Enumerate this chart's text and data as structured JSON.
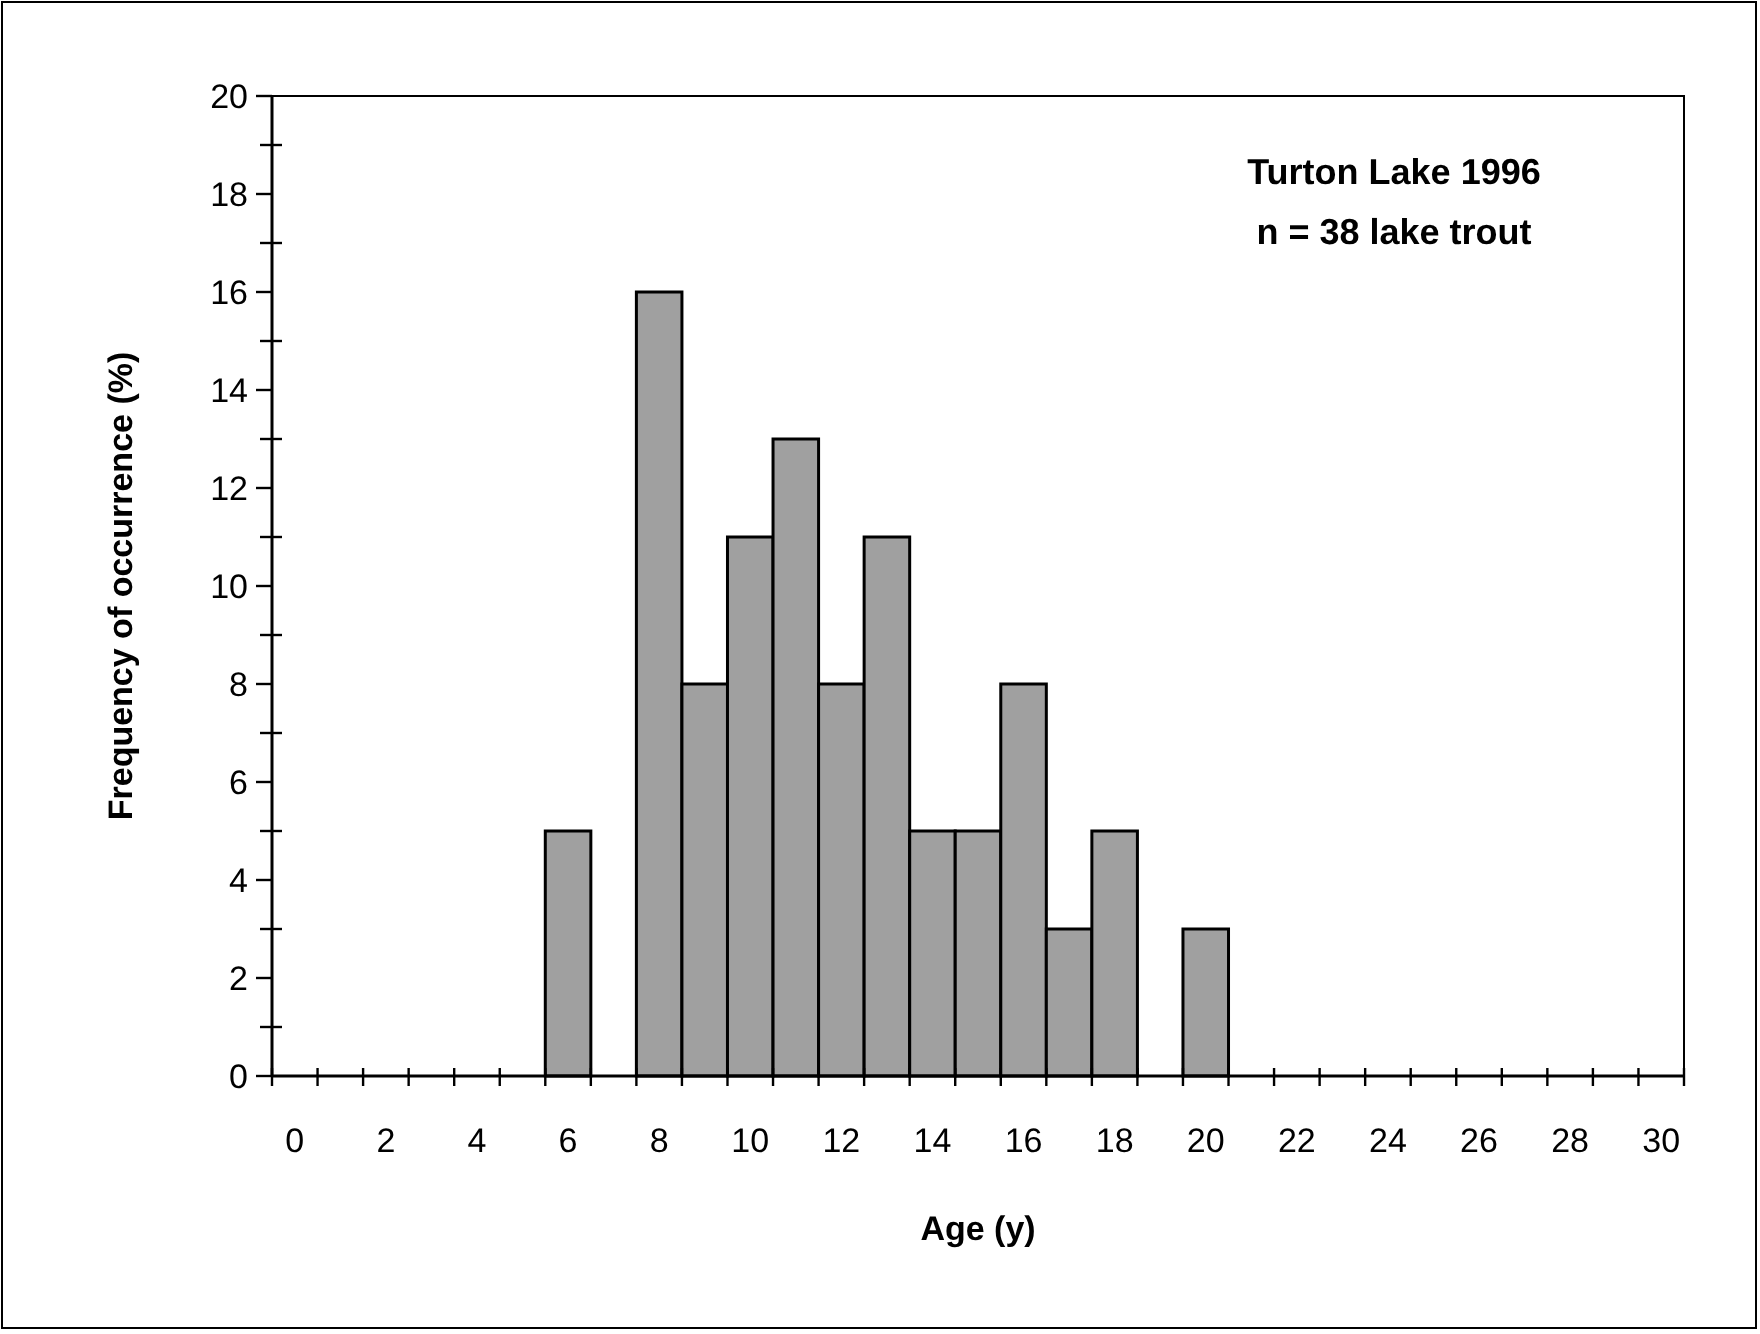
{
  "chart_data": {
    "type": "bar",
    "title": "Turton Lake 1996",
    "subtitle": "n = 38 lake trout",
    "xlabel": "Age (y)",
    "ylabel": "Frequency of occurrence (%)",
    "categories": [
      "0",
      null,
      "2",
      null,
      "4",
      null,
      "6",
      null,
      "8",
      null,
      "10",
      null,
      "12",
      null,
      "14",
      null,
      "16",
      null,
      "18",
      null,
      "20",
      null,
      "22",
      null,
      "24",
      null,
      "26",
      null,
      "28",
      null,
      "30"
    ],
    "values": [
      null,
      null,
      null,
      null,
      null,
      null,
      5,
      null,
      16,
      8,
      11,
      13,
      8,
      11,
      5,
      5,
      8,
      3,
      5,
      null,
      3,
      null,
      null,
      null,
      null,
      null,
      null,
      null,
      null,
      null,
      null
    ],
    "color": "#a0a0a0",
    "ylim": [
      0,
      20
    ],
    "yticks": [
      0,
      {
        "value": 1,
        "label": null
      },
      2,
      {
        "value": 3,
        "label": null
      },
      4,
      {
        "value": 5,
        "label": null
      },
      6,
      {
        "value": 7,
        "label": null
      },
      8,
      {
        "value": 9,
        "label": null
      },
      10,
      {
        "value": 11,
        "label": null
      },
      12,
      {
        "value": 13,
        "label": null
      },
      14,
      {
        "value": 15,
        "label": null
      },
      16,
      {
        "value": 17,
        "label": null
      },
      18,
      {
        "value": 19,
        "label": null
      },
      20
    ]
  }
}
